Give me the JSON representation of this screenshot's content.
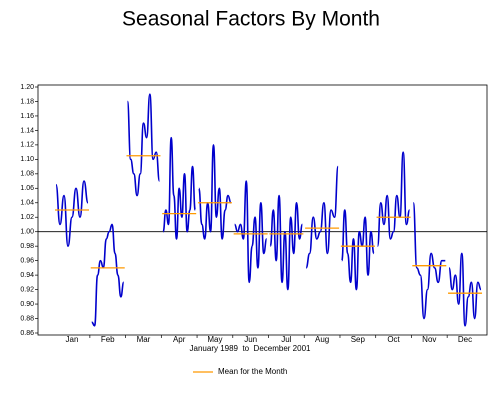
{
  "chart_data": {
    "type": "seasonal-subseries",
    "title": "Seasonal Factors By Month",
    "xlabel": "January 1989  to  December 2001",
    "categories": [
      "Jan",
      "Feb",
      "Mar",
      "Apr",
      "May",
      "Jun",
      "Jul",
      "Aug",
      "Sep",
      "Oct",
      "Nov",
      "Dec"
    ],
    "color": "#0000cc",
    "subseries": [
      {
        "values": [
          1.065,
          1.01,
          1.05,
          0.98,
          1.02,
          1.06,
          1.02,
          1.07,
          1.04
        ]
      },
      {
        "values": [
          0.875,
          0.87,
          0.94,
          0.96,
          0.95,
          0.99,
          1.0,
          1.01,
          0.97,
          0.94,
          0.91,
          0.93
        ]
      },
      {
        "values": [
          1.18,
          1.1,
          1.08,
          1.05,
          1.08,
          1.15,
          1.13,
          1.19,
          1.1,
          1.11,
          1.07
        ]
      },
      {
        "values": [
          1.0,
          1.03,
          1.01,
          1.13,
          1.05,
          0.99,
          1.06,
          1.02,
          1.08,
          1.0,
          1.03,
          1.09,
          1.03
        ]
      },
      {
        "values": [
          1.06,
          1.01,
          0.99,
          1.04,
          1.0,
          1.12,
          1.02,
          1.06,
          0.99,
          1.03,
          1.05,
          1.04
        ]
      },
      {
        "values": [
          1.01,
          1.0,
          1.01,
          0.99,
          1.07,
          0.93,
          0.98,
          1.02,
          0.95,
          1.04,
          0.97,
          0.99
        ]
      },
      {
        "values": [
          0.98,
          1.03,
          0.96,
          1.05,
          0.93,
          1.0,
          0.92,
          1.02,
          0.97,
          1.04,
          0.99,
          1.01
        ]
      },
      {
        "values": [
          0.95,
          0.97,
          1.02,
          0.99,
          1.0,
          1.04,
          0.97,
          1.03,
          1.02,
          1.09
        ]
      },
      {
        "values": [
          0.96,
          1.03,
          0.97,
          0.93,
          0.99,
          0.92,
          1.0,
          0.98,
          1.02,
          0.94,
          1.0,
          0.97
        ]
      },
      {
        "values": [
          0.98,
          1.04,
          1.01,
          1.05,
          0.99,
          1.0,
          1.05,
          1.02,
          1.11,
          1.01,
          1.03
        ]
      },
      {
        "values": [
          1.04,
          0.95,
          0.94,
          0.88,
          0.92,
          0.97,
          0.95,
          0.93,
          0.96,
          0.96
        ]
      },
      {
        "values": [
          0.95,
          0.92,
          0.94,
          0.9,
          0.97,
          0.87,
          0.91,
          0.93,
          0.88,
          0.93,
          0.92
        ]
      }
    ],
    "means": [
      1.03,
      0.95,
      1.105,
      1.025,
      1.04,
      0.997,
      0.997,
      1.005,
      0.98,
      1.02,
      0.953,
      0.915
    ],
    "mean_label": "Mean for the Month",
    "mean_color": "#ff9900",
    "reference_line": 1,
    "ylim": [
      0.86,
      1.2
    ],
    "yticks": [
      0.86,
      0.88,
      {
        "value": 0.9,
        "label": "0.90"
      },
      0.92,
      0.94,
      0.96,
      0.98,
      {
        "value": 1,
        "label": "1.00"
      },
      1.02,
      1.04,
      1.06,
      1.08,
      {
        "value": 1.1,
        "label": "1.10"
      },
      1.12,
      1.14,
      1.16,
      1.18,
      {
        "value": 1.2,
        "label": "1.20"
      }
    ]
  }
}
